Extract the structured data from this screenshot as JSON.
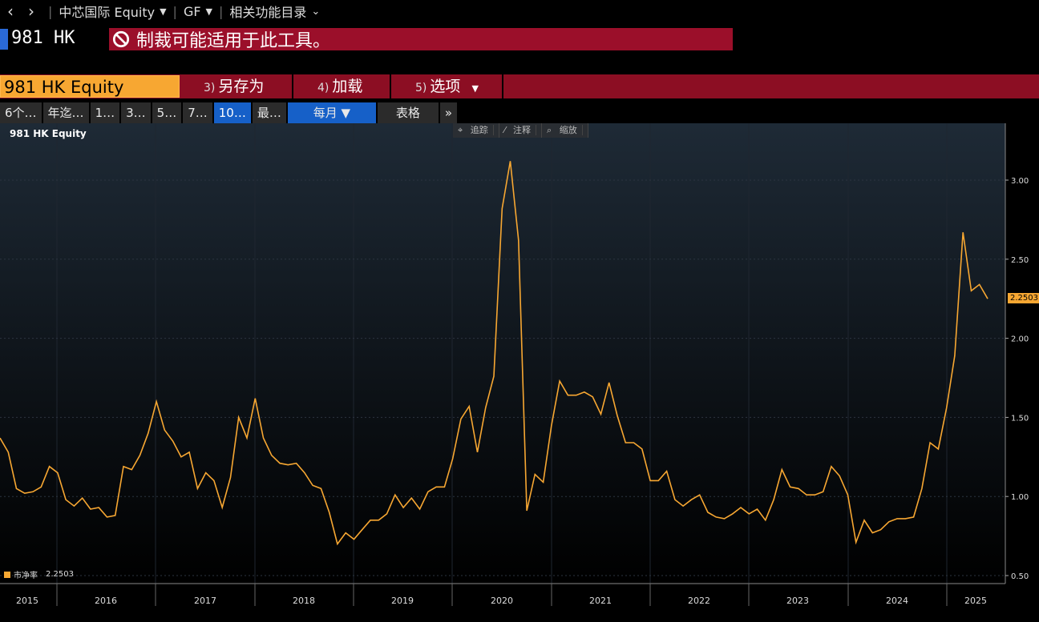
{
  "topbar": {
    "back_icon": "chevron-left-icon",
    "forward_icon": "chevron-right-icon",
    "security_menu": "中芯国际 Equity",
    "function_menu": "GF",
    "related_menu": "相关功能目录"
  },
  "ticker": "981 HK",
  "sanction_notice": "制裁可能适用于此工具。",
  "command_bar": {
    "security": "981 HK Equity",
    "actions": [
      {
        "num": "3)",
        "label": "另存为"
      },
      {
        "num": "4)",
        "label": "加载"
      },
      {
        "num": "5)",
        "label": "选项"
      }
    ]
  },
  "range_tabs": [
    "6个…",
    "年迄…",
    "1…",
    "3…",
    "5…",
    "7…",
    "10…",
    "最…"
  ],
  "active_range": "10…",
  "frequency": "每月 ▼",
  "table_button": "表格",
  "more_button": "»",
  "chart_tools": [
    "追踪",
    "注释",
    "缩放"
  ],
  "legend": {
    "label": "市净率",
    "value": "2.2503"
  },
  "last_value": "2.2503",
  "colors": {
    "line": "#f7a732",
    "accent_red": "#8c0e23",
    "blue": "#1660c8"
  },
  "chart_data": {
    "type": "line",
    "title": "981 HK Equity",
    "series": [
      {
        "name": "市净率",
        "values": [
          1.37,
          1.28,
          1.05,
          1.02,
          1.03,
          1.06,
          1.19,
          1.15,
          0.98,
          0.94,
          0.99,
          0.92,
          0.93,
          0.87,
          0.88,
          1.19,
          1.17,
          1.26,
          1.4,
          1.6,
          1.42,
          1.35,
          1.25,
          1.28,
          1.05,
          1.15,
          1.1,
          0.93,
          1.12,
          1.5,
          1.37,
          1.62,
          1.37,
          1.26,
          1.21,
          1.2,
          1.21,
          1.15,
          1.07,
          1.05,
          0.9,
          0.7,
          0.77,
          0.73,
          0.79,
          0.85,
          0.85,
          0.89,
          1.01,
          0.93,
          0.99,
          0.92,
          1.03,
          1.06,
          1.06,
          1.24,
          1.49,
          1.57,
          1.28,
          1.56,
          1.76,
          2.82,
          3.12,
          2.62,
          0.91,
          1.14,
          1.09,
          1.45,
          1.73,
          1.64,
          1.64,
          1.66,
          1.63,
          1.52,
          1.72,
          1.51,
          1.34,
          1.34,
          1.3,
          1.1,
          1.1,
          1.16,
          0.98,
          0.94,
          0.98,
          1.01,
          0.9,
          0.87,
          0.86,
          0.89,
          0.93,
          0.89,
          0.92,
          0.85,
          0.98,
          1.17,
          1.06,
          1.05,
          1.01,
          1.01,
          1.03,
          1.19,
          1.13,
          1.01,
          0.71,
          0.85,
          0.77,
          0.79,
          0.84,
          0.86,
          0.86,
          0.87,
          1.05,
          1.34,
          1.3,
          1.56,
          1.89,
          2.67,
          2.3,
          2.34,
          2.25
        ]
      }
    ],
    "x_labels": [
      "2015",
      "2016",
      "2017",
      "2018",
      "2019",
      "2020",
      "2021",
      "2022",
      "2023",
      "2024",
      "2025"
    ],
    "y_ticks": [
      "0.50",
      "1.00",
      "1.50",
      "2.00",
      "2.50",
      "3.00"
    ],
    "ylim": [
      0.5,
      3.3
    ],
    "grid": true
  }
}
